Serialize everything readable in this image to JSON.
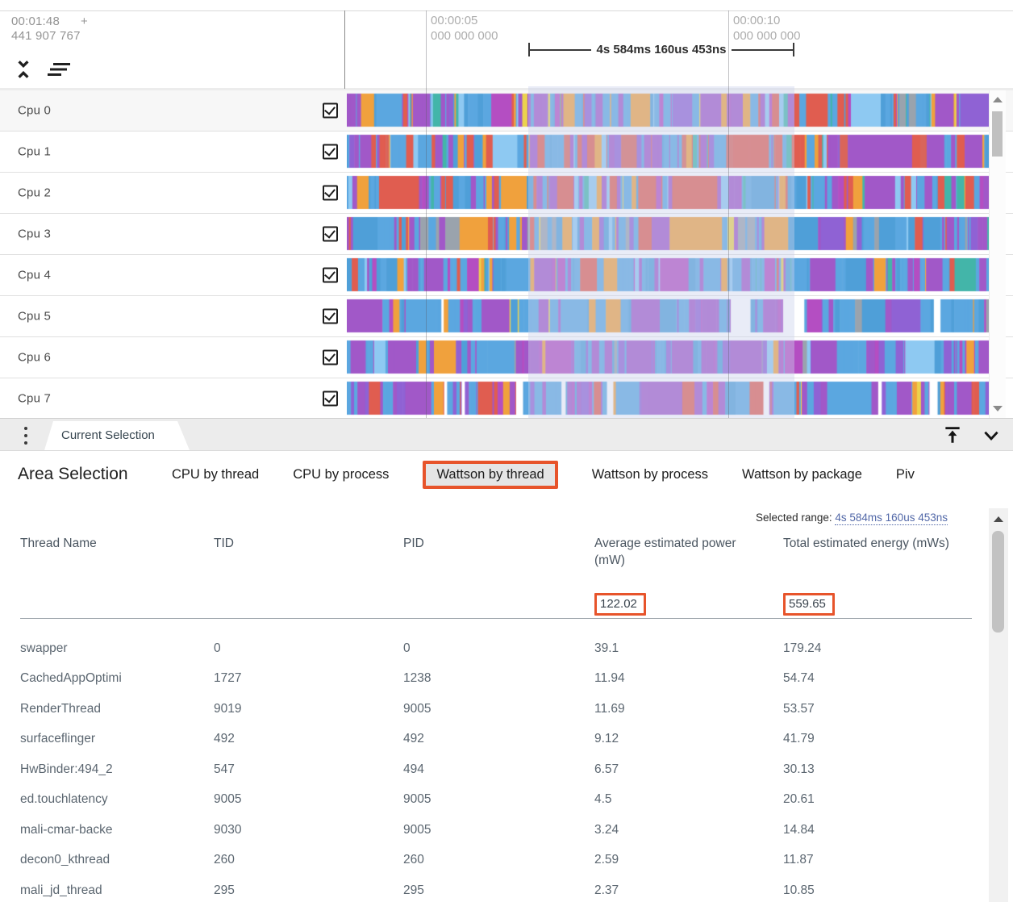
{
  "timeline": {
    "origin": {
      "time": "00:01:48",
      "plus": "+",
      "nanos": "441 907 767"
    },
    "ticks": [
      {
        "time": "00:00:05",
        "nanos": "000 000 000"
      },
      {
        "time": "00:00:10",
        "nanos": "000 000 000"
      }
    ],
    "selection_duration": "4s 584ms 160us 453ns"
  },
  "header_icons": {
    "collapse": "unfold-less-icon",
    "sort": "sort-lines-icon"
  },
  "tracks": {
    "palette": {
      "blue": "#5ba7e0",
      "sky": "#4f9fd8",
      "lblue": "#8ec9f2",
      "purple": "#a158c8",
      "violet": "#8f62d4",
      "magenta": "#b44ec2",
      "orange": "#f0a13d",
      "red": "#e05d50",
      "red2": "#d9655a",
      "teal": "#43b5a9",
      "yellow": "#ecd24e",
      "gray": "#9aa3ad",
      "white": "#ffffff"
    },
    "rows": [
      {
        "name": "Cpu 0",
        "checked": true,
        "mix": [
          [
            "blue",
            26
          ],
          [
            "sky",
            10
          ],
          [
            "lblue",
            8
          ],
          [
            "purple",
            16
          ],
          [
            "violet",
            6
          ],
          [
            "orange",
            10
          ],
          [
            "red",
            8
          ],
          [
            "teal",
            7
          ],
          [
            "magenta",
            5
          ],
          [
            "yellow",
            2
          ],
          [
            "gray",
            2
          ]
        ]
      },
      {
        "name": "Cpu 1",
        "checked": true,
        "mix": [
          [
            "red",
            20
          ],
          [
            "red2",
            6
          ],
          [
            "blue",
            28
          ],
          [
            "sky",
            8
          ],
          [
            "purple",
            18
          ],
          [
            "violet",
            6
          ],
          [
            "orange",
            6
          ],
          [
            "teal",
            3
          ],
          [
            "lblue",
            5
          ]
        ]
      },
      {
        "name": "Cpu 2",
        "checked": true,
        "mix": [
          [
            "red",
            16
          ],
          [
            "orange",
            12
          ],
          [
            "blue",
            26
          ],
          [
            "sky",
            8
          ],
          [
            "purple",
            20
          ],
          [
            "magenta",
            6
          ],
          [
            "teal",
            4
          ],
          [
            "yellow",
            2
          ],
          [
            "lblue",
            6
          ]
        ]
      },
      {
        "name": "Cpu 3",
        "checked": true,
        "mix": [
          [
            "blue",
            30
          ],
          [
            "sky",
            8
          ],
          [
            "gray",
            12
          ],
          [
            "purple",
            16
          ],
          [
            "violet",
            6
          ],
          [
            "red",
            10
          ],
          [
            "orange",
            7
          ],
          [
            "teal",
            5
          ],
          [
            "yellow",
            3
          ],
          [
            "lblue",
            3
          ]
        ]
      },
      {
        "name": "Cpu 4",
        "checked": true,
        "mix": [
          [
            "blue",
            40
          ],
          [
            "sky",
            12
          ],
          [
            "lblue",
            8
          ],
          [
            "purple",
            14
          ],
          [
            "magenta",
            8
          ],
          [
            "orange",
            7
          ],
          [
            "red",
            5
          ],
          [
            "teal",
            4
          ],
          [
            "yellow",
            2
          ]
        ]
      },
      {
        "name": "Cpu 5",
        "checked": true,
        "mix": [
          [
            "blue",
            34
          ],
          [
            "sky",
            8
          ],
          [
            "purple",
            26
          ],
          [
            "violet",
            8
          ],
          [
            "white",
            8
          ],
          [
            "magenta",
            6
          ],
          [
            "yellow",
            3
          ],
          [
            "orange",
            3
          ],
          [
            "gray",
            4
          ]
        ]
      },
      {
        "name": "Cpu 6",
        "checked": true,
        "mix": [
          [
            "purple",
            30
          ],
          [
            "violet",
            10
          ],
          [
            "magenta",
            8
          ],
          [
            "blue",
            30
          ],
          [
            "sky",
            8
          ],
          [
            "orange",
            5
          ],
          [
            "gray",
            4
          ],
          [
            "lblue",
            5
          ]
        ]
      },
      {
        "name": "Cpu 7",
        "checked": true,
        "mix": [
          [
            "purple",
            28
          ],
          [
            "violet",
            8
          ],
          [
            "blue",
            26
          ],
          [
            "sky",
            6
          ],
          [
            "white",
            7
          ],
          [
            "red",
            12
          ],
          [
            "magenta",
            5
          ],
          [
            "yellow",
            4
          ],
          [
            "orange",
            4
          ]
        ]
      }
    ]
  },
  "tab_bar": {
    "tab_label": "Current Selection",
    "icons": {
      "menu": "more-vert-icon",
      "dock": "vertical-align-top-icon",
      "collapse": "chevron-down-icon"
    }
  },
  "detail": {
    "title": "Area Selection",
    "tabs": [
      {
        "label": "CPU by thread",
        "selected": false
      },
      {
        "label": "CPU by process",
        "selected": false
      },
      {
        "label": "Wattson by thread",
        "selected": true
      },
      {
        "label": "Wattson by process",
        "selected": false
      },
      {
        "label": "Wattson by package",
        "selected": false
      },
      {
        "label": "Piv",
        "selected": false
      }
    ],
    "selected_range": {
      "label": "Selected range:",
      "value": "4s 584ms 160us 453ns"
    },
    "table": {
      "columns": [
        "Thread Name",
        "TID",
        "PID",
        "Average estimated power (mW)",
        "Total estimated energy (mWs)"
      ],
      "summary": {
        "avg_power": "122.02",
        "total_energy": "559.65"
      },
      "rows": [
        {
          "thread": "swapper",
          "tid": "0",
          "pid": "0",
          "avg_power": "39.1",
          "total_energy": "179.24"
        },
        {
          "thread": "CachedAppOptimi",
          "tid": "1727",
          "pid": "1238",
          "avg_power": "11.94",
          "total_energy": "54.74"
        },
        {
          "thread": "RenderThread",
          "tid": "9019",
          "pid": "9005",
          "avg_power": "11.69",
          "total_energy": "53.57"
        },
        {
          "thread": "surfaceflinger",
          "tid": "492",
          "pid": "492",
          "avg_power": "9.12",
          "total_energy": "41.79"
        },
        {
          "thread": "HwBinder:494_2",
          "tid": "547",
          "pid": "494",
          "avg_power": "6.57",
          "total_energy": "30.13"
        },
        {
          "thread": "ed.touchlatency",
          "tid": "9005",
          "pid": "9005",
          "avg_power": "4.5",
          "total_energy": "20.61"
        },
        {
          "thread": "mali-cmar-backe",
          "tid": "9030",
          "pid": "9005",
          "avg_power": "3.24",
          "total_energy": "14.84"
        },
        {
          "thread": "decon0_kthread",
          "tid": "260",
          "pid": "260",
          "avg_power": "2.59",
          "total_energy": "11.87"
        },
        {
          "thread": "mali_jd_thread",
          "tid": "295",
          "pid": "295",
          "avg_power": "2.37",
          "total_energy": "10.85"
        }
      ]
    }
  },
  "colors": {
    "annotation": "#e7542b",
    "link": "#5268a8",
    "selection_overlay": "rgba(202,209,235,0.42)"
  }
}
